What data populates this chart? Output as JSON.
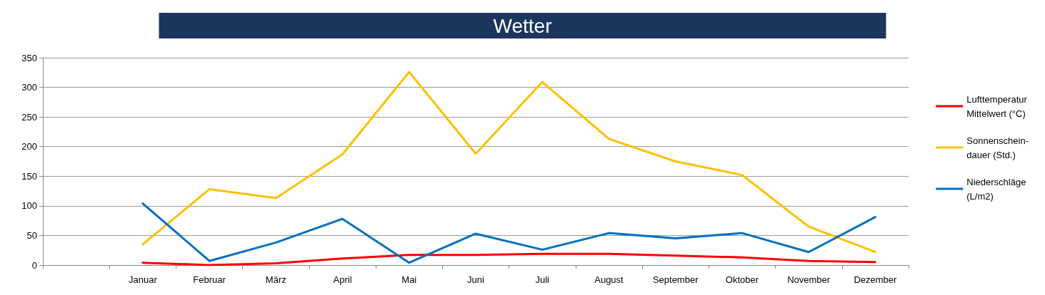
{
  "chart_data": {
    "type": "line",
    "title": "Wetter",
    "categories": [
      null,
      "Januar",
      "Februar",
      "März",
      "April",
      "Mai",
      "Juni",
      "Juli",
      "August",
      "September",
      "Oktober",
      "November",
      "Dezember"
    ],
    "series": [
      {
        "name": "Lufttemperatur\nMittelwert (°C)",
        "color": "#ff0000",
        "values": [
          null,
          4,
          0,
          3,
          11,
          17,
          17,
          19,
          19,
          16,
          13,
          7,
          5
        ]
      },
      {
        "name": "Sonnenschein-\ndauer (Std.)",
        "color": "#ffc000",
        "values": [
          null,
          35,
          128,
          113,
          187,
          326,
          188,
          309,
          213,
          175,
          152,
          65,
          22
        ]
      },
      {
        "name": "Niederschläge\n(L/m2)",
        "color": "#0070c0",
        "values": [
          null,
          104,
          7,
          38,
          78,
          4,
          53,
          26,
          54,
          45,
          54,
          22,
          81
        ]
      }
    ],
    "ylim": [
      0,
      350
    ],
    "yticks": [
      0,
      50,
      100,
      150,
      200,
      250,
      300,
      350
    ],
    "grid": "y",
    "legend": "right",
    "marker": "none",
    "line_style": "solid"
  }
}
